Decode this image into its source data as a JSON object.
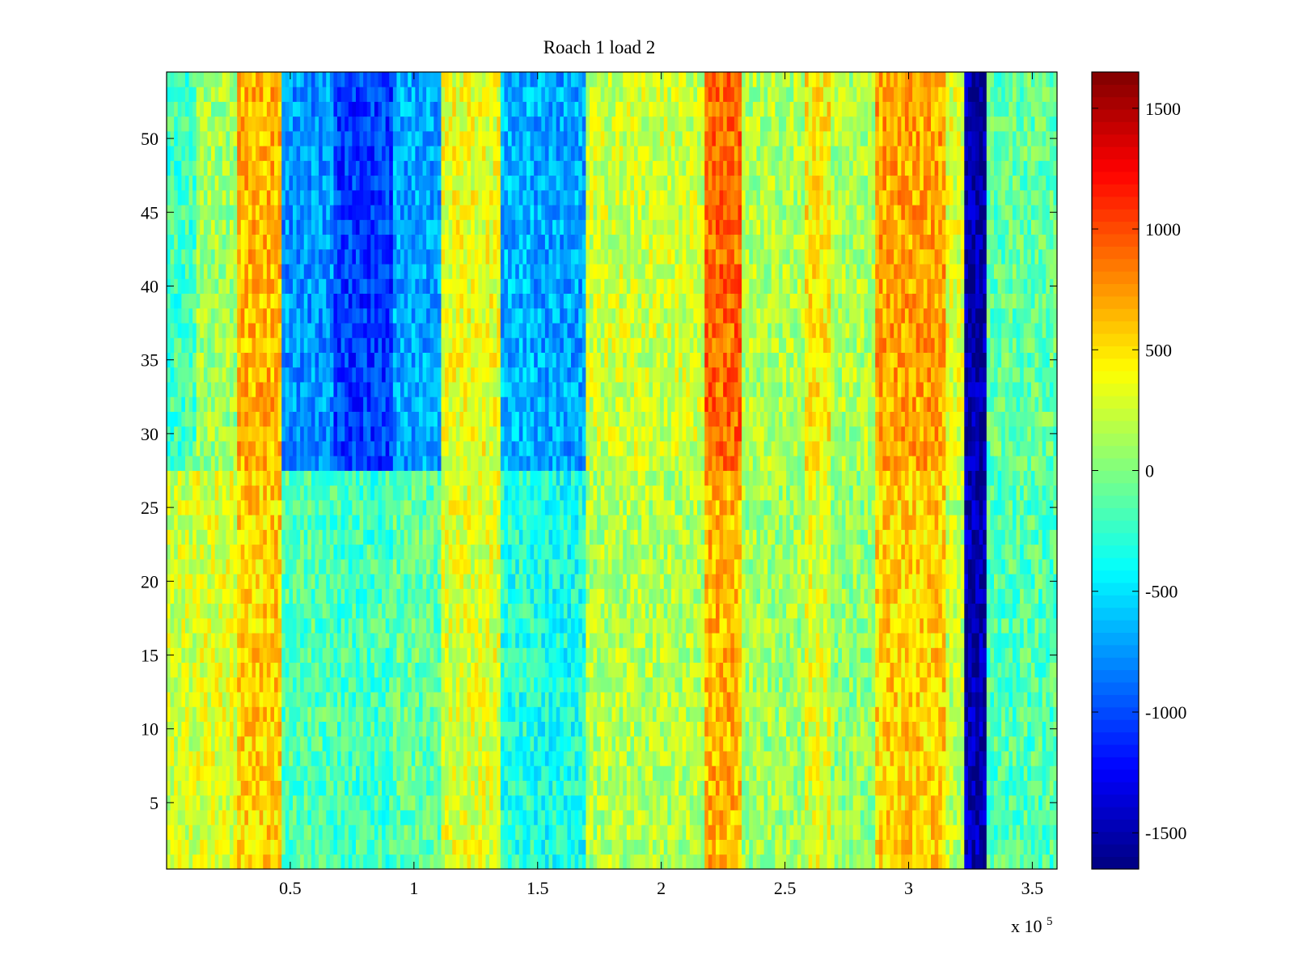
{
  "chart_data": {
    "type": "heatmap",
    "title": "Roach 1 load 2",
    "xlabel": "",
    "ylabel": "",
    "x_exponent_label": "x 10",
    "x_exponent_power": "5",
    "xlim": [
      0,
      3.6
    ],
    "ylim": [
      0.5,
      54.5
    ],
    "x_ticks": [
      0.5,
      1,
      1.5,
      2,
      2.5,
      3,
      3.5
    ],
    "x_tick_labels": [
      "0.5",
      "1",
      "1.5",
      "2",
      "2.5",
      "3",
      "3.5"
    ],
    "y_ticks": [
      5,
      10,
      15,
      20,
      25,
      30,
      35,
      40,
      45,
      50
    ],
    "y_tick_labels": [
      "5",
      "10",
      "15",
      "20",
      "25",
      "30",
      "35",
      "40",
      "45",
      "50"
    ],
    "colorbar": {
      "colormap": "jet",
      "clim": [
        -1650,
        1650
      ],
      "ticks": [
        -1500,
        -1000,
        -500,
        0,
        500,
        1000,
        1500
      ],
      "tick_labels": [
        "-1500",
        "-1000",
        "-500",
        "0",
        "500",
        "1000",
        "1500"
      ]
    },
    "rows": 54,
    "grid": false,
    "bands": [
      {
        "x_start": 0.0,
        "x_end": 0.12,
        "value_rows_1_27": 250,
        "value_rows_28_54": -200
      },
      {
        "x_start": 0.12,
        "x_end": 0.28,
        "value_rows_1_27": 300,
        "value_rows_28_54": 100
      },
      {
        "x_start": 0.28,
        "x_end": 0.46,
        "value_rows_1_27": 550,
        "value_rows_28_54": 650
      },
      {
        "x_start": 0.46,
        "x_end": 0.68,
        "value_rows_1_27": -150,
        "value_rows_28_54": -750
      },
      {
        "x_start": 0.68,
        "x_end": 0.92,
        "value_rows_1_27": -200,
        "value_rows_28_54": -1050
      },
      {
        "x_start": 0.92,
        "x_end": 1.11,
        "value_rows_1_27": -100,
        "value_rows_28_54": -700
      },
      {
        "x_start": 1.11,
        "x_end": 1.35,
        "value_rows_1_27": 300,
        "value_rows_28_54": 350
      },
      {
        "x_start": 1.35,
        "x_end": 1.48,
        "value_rows_1_27": -300,
        "value_rows_28_54": -650
      },
      {
        "x_start": 1.48,
        "x_end": 1.7,
        "value_rows_1_27": -350,
        "value_rows_28_54": -700
      },
      {
        "x_start": 1.7,
        "x_end": 2.18,
        "value_rows_1_27": 150,
        "value_rows_28_54": 250
      },
      {
        "x_start": 2.18,
        "x_end": 2.33,
        "value_rows_1_27": 650,
        "value_rows_28_54": 900
      },
      {
        "x_start": 2.33,
        "x_end": 2.58,
        "value_rows_1_27": 100,
        "value_rows_28_54": 150
      },
      {
        "x_start": 2.58,
        "x_end": 2.68,
        "value_rows_1_27": 300,
        "value_rows_28_54": 450
      },
      {
        "x_start": 2.68,
        "x_end": 2.87,
        "value_rows_1_27": 50,
        "value_rows_28_54": 150
      },
      {
        "x_start": 2.87,
        "x_end": 3.15,
        "value_rows_1_27": 550,
        "value_rows_28_54": 700
      },
      {
        "x_start": 3.15,
        "x_end": 3.22,
        "value_rows_1_27": 200,
        "value_rows_28_54": 300
      },
      {
        "x_start": 3.22,
        "x_end": 3.31,
        "value_rows_1_27": -1500,
        "value_rows_28_54": -1550
      },
      {
        "x_start": 3.31,
        "x_end": 3.6,
        "value_rows_1_27": -150,
        "value_rows_28_54": -100
      }
    ]
  }
}
